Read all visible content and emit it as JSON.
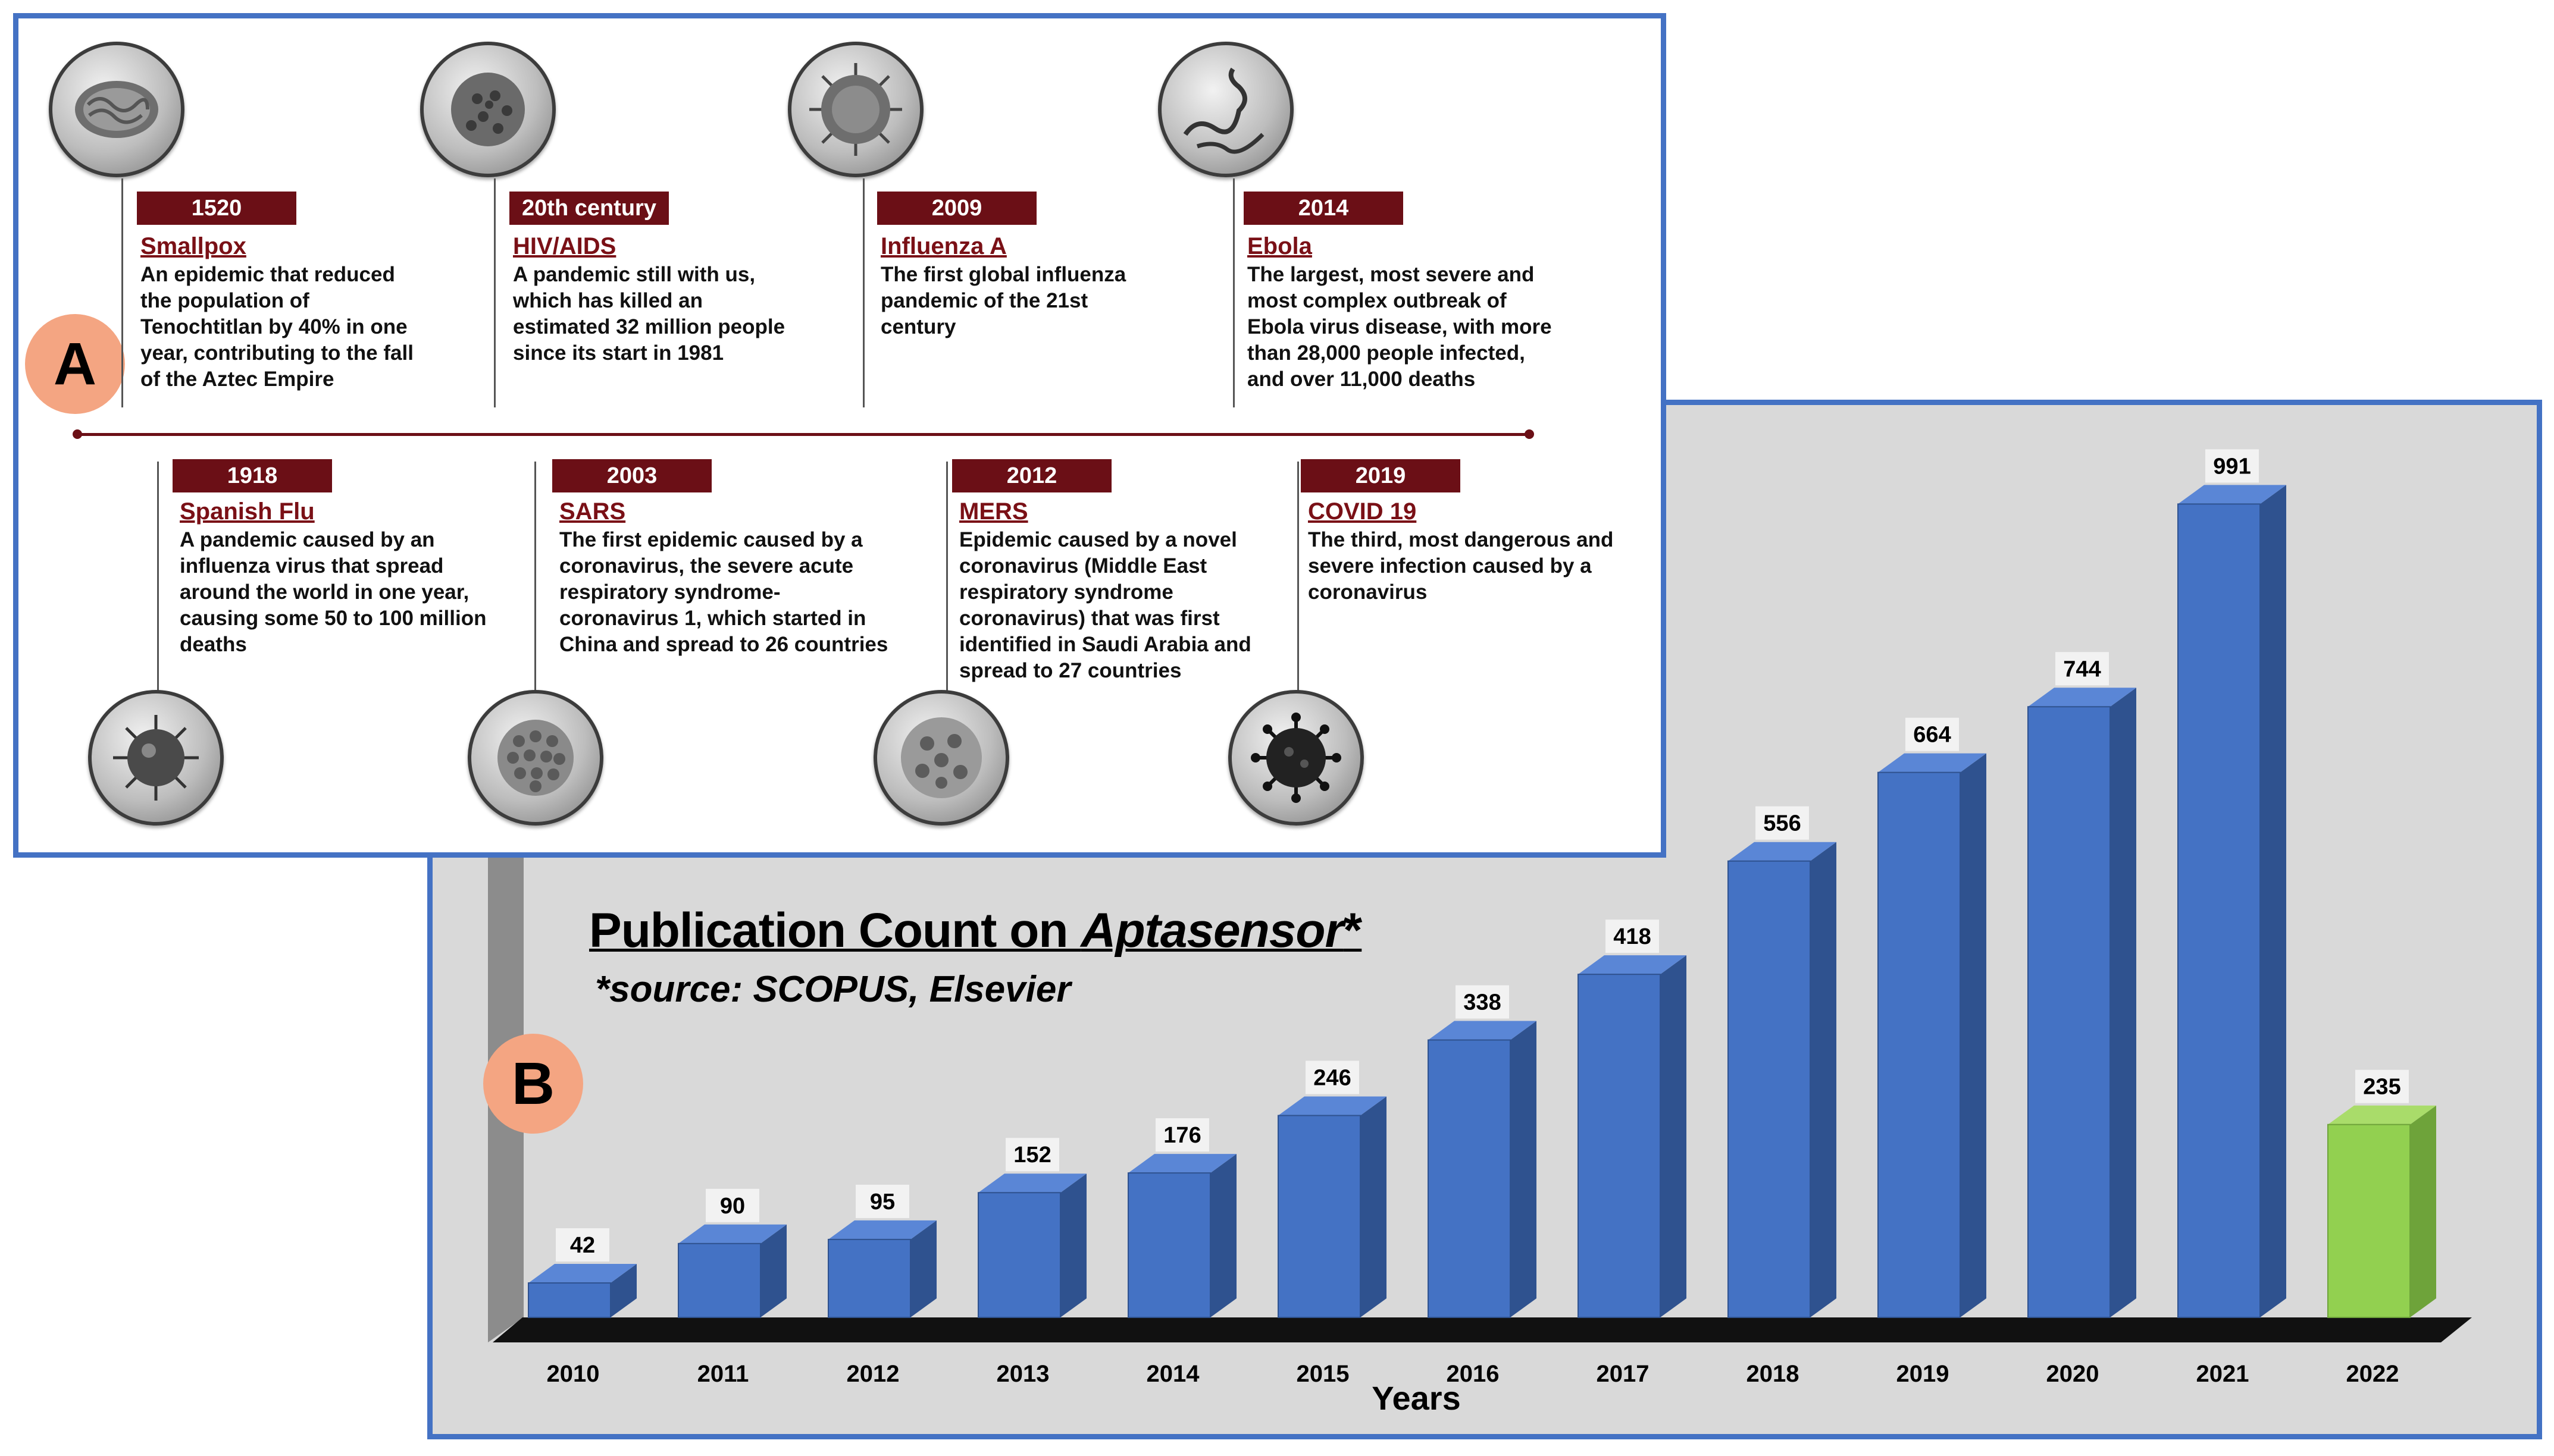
{
  "panel_a": {
    "label": "A",
    "events_top": [
      {
        "year": "1520",
        "title": "Smallpox",
        "desc": "An epidemic that reduced\nthe population of\nTenochtitlan by 40% in one\nyear, contributing to the fall\nof the Aztec Empire",
        "icon": "smallpox-virus-icon"
      },
      {
        "year": "20th century",
        "title": "HIV/AIDS",
        "desc": "A pandemic still with us,\nwhich has killed an\nestimated 32 million people\nsince its start in 1981",
        "icon": "hiv-virus-icon"
      },
      {
        "year": "2009",
        "title": "Influenza A",
        "desc": "The first global influenza\npandemic of the 21st\ncentury",
        "icon": "influenza-virus-icon"
      },
      {
        "year": "2014",
        "title": "Ebola",
        "desc": "The largest, most severe and\nmost complex outbreak of\nEbola virus disease, with more\nthan 28,000 people infected,\nand over 11,000 deaths",
        "icon": "ebola-virus-icon"
      }
    ],
    "events_bottom": [
      {
        "year": "1918",
        "title": "Spanish Flu",
        "desc": "A pandemic caused by an\ninfluenza virus that spread\naround the world in one year,\ncausing some 50 to 100 million\ndeaths",
        "icon": "spanish-flu-virus-icon"
      },
      {
        "year": "2003",
        "title": "SARS",
        "desc": "The first epidemic caused by a\ncoronavirus, the severe acute\nrespiratory syndrome-\ncoronavirus 1, which started in\nChina and spread to 26 countries",
        "icon": "sars-virus-icon"
      },
      {
        "year": "2012",
        "title": "MERS",
        "desc": "Epidemic caused by a novel\ncoronavirus (Middle East\nrespiratory syndrome\ncoronavirus) that was first\nidentified in Saudi Arabia and\nspread to 27 countries",
        "icon": "mers-virus-icon"
      },
      {
        "year": "2019",
        "title": "COVID 19",
        "desc": "The third, most dangerous and\nsevere infection caused by a\ncoronavirus",
        "icon": "covid-virus-icon"
      }
    ]
  },
  "panel_b": {
    "label": "B",
    "title_plain": "Publication Count on ",
    "title_italic": "Aptasensor",
    "title_suffix": "*",
    "subtitle": "*source: SCOPUS, Elsevier"
  },
  "colors": {
    "bar_blue": "#4472c4",
    "bar_highlight": "#92d050",
    "timeline_red": "#6b0f16",
    "panel_border": "#4472c4",
    "label_circle": "#f4a582"
  },
  "chart_data": {
    "type": "bar",
    "title": "Publication Count on Aptasensor*",
    "subtitle": "*source: SCOPUS, Elsevier",
    "xlabel": "Years",
    "ylabel": "",
    "categories": [
      "2010",
      "2011",
      "2012",
      "2013",
      "2014",
      "2015",
      "2016",
      "2017",
      "2018",
      "2019",
      "2020",
      "2021",
      "2022"
    ],
    "values": [
      42,
      90,
      95,
      152,
      176,
      246,
      338,
      418,
      556,
      664,
      744,
      991,
      235
    ],
    "highlight_category": "2022",
    "ylim": [
      0,
      1000
    ],
    "grid": false,
    "legend": "none",
    "data_labels": true
  }
}
